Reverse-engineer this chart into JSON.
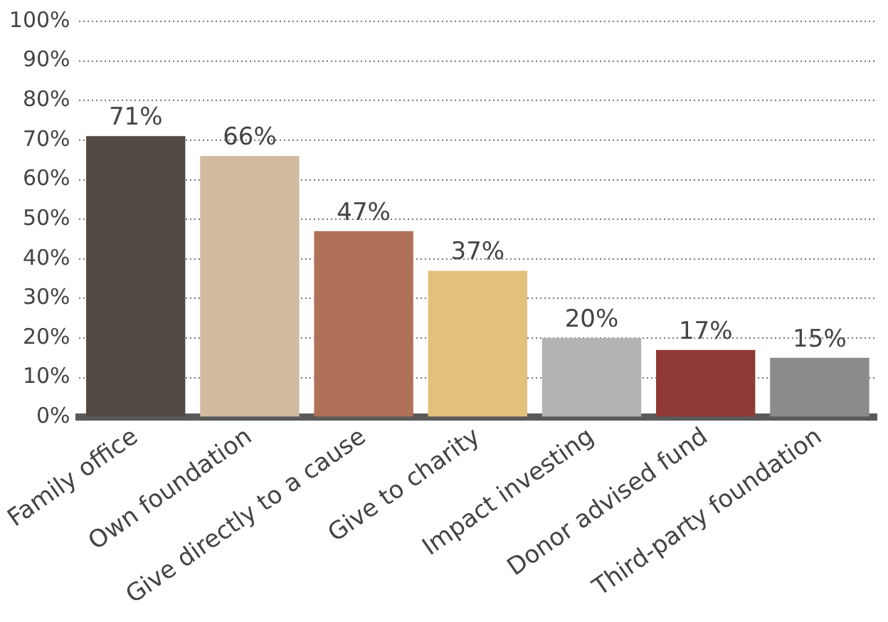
{
  "chart_data": {
    "type": "bar",
    "categories": [
      "Family office",
      "Own foundation",
      "Give directly to a cause",
      "Give to charity",
      "Impact investing",
      "Donor advised fund",
      "Third-party foundation"
    ],
    "values": [
      71,
      66,
      47,
      37,
      20,
      17,
      15
    ],
    "colors": [
      "#524a42",
      "#d0bba0",
      "#b07158",
      "#e3c07c",
      "#b3b3b6",
      "#8f3a36",
      "#8b8b8e"
    ],
    "value_labels": [
      "71%",
      "66%",
      "47%",
      "37%",
      "20%",
      "17%",
      "15%"
    ],
    "ylim": [
      0,
      100
    ],
    "yticks": [
      {
        "value": 0,
        "label": "0%"
      },
      {
        "value": 10,
        "label": "10%"
      },
      {
        "value": 20,
        "label": "20%"
      },
      {
        "value": 30,
        "label": "30%"
      },
      {
        "value": 40,
        "label": "40%"
      },
      {
        "value": 50,
        "label": "50%"
      },
      {
        "value": 60,
        "label": "60%"
      },
      {
        "value": 70,
        "label": "70%"
      },
      {
        "value": 80,
        "label": "80%"
      },
      {
        "value": 90,
        "label": "90%"
      },
      {
        "value": 100,
        "label": "100%"
      }
    ],
    "grid": "y"
  }
}
